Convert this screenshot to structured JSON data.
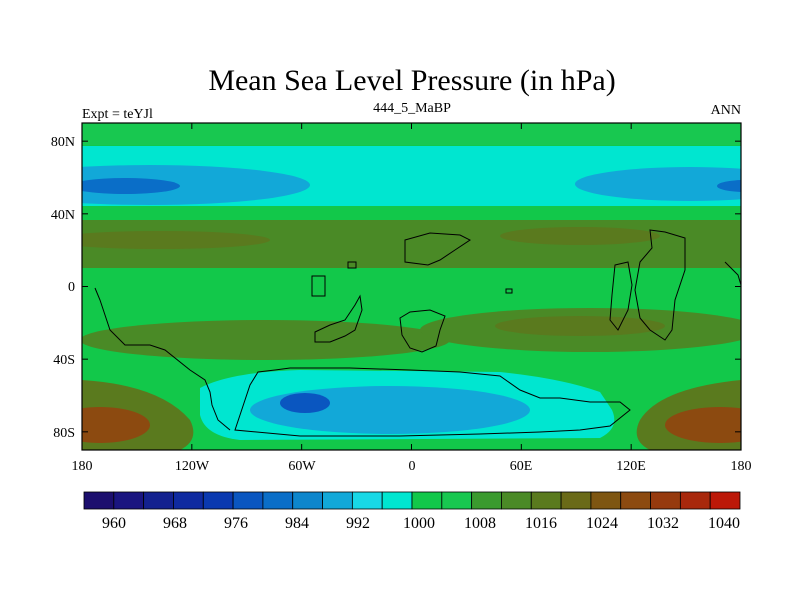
{
  "chart_data": {
    "type": "heatmap",
    "title": "Mean Sea Level Pressure (in hPa)",
    "left_string": "Expt = teYJl",
    "center_string": "444_5_MaBP",
    "right_string": "ANN",
    "x_ticks": [
      "180",
      "120W",
      "60W",
      "0",
      "60E",
      "120E",
      "180"
    ],
    "x_tick_values": [
      -180,
      -120,
      -60,
      0,
      60,
      120,
      180
    ],
    "y_ticks": [
      "80N",
      "40N",
      "0",
      "40S",
      "80S"
    ],
    "y_tick_values": [
      80,
      40,
      0,
      -40,
      -80
    ],
    "xlim": [
      -180,
      180
    ],
    "ylim": [
      -90,
      90
    ],
    "units": "hPa",
    "colorbar": {
      "labels": [
        "960",
        "968",
        "976",
        "984",
        "992",
        "1000",
        "1008",
        "1016",
        "1024",
        "1032",
        "1040"
      ],
      "levels": [
        956,
        960,
        964,
        968,
        972,
        976,
        980,
        984,
        988,
        992,
        996,
        1000,
        1004,
        1008,
        1012,
        1016,
        1020,
        1024,
        1028,
        1032,
        1036,
        1040,
        1044
      ],
      "colors": [
        "#1c0f6e",
        "#1a1580",
        "#13218f",
        "#0f2aa0",
        "#0a39b0",
        "#0a56c0",
        "#0a6ec8",
        "#0d86cc",
        "#12a8d8",
        "#18d8e6",
        "#00e6d0",
        "#12c84a",
        "#18c850",
        "#3a9a2e",
        "#4a8a26",
        "#5a7a1e",
        "#6a6a18",
        "#7e5612",
        "#8c4a10",
        "#963a0e",
        "#a8280c",
        "#bc1808"
      ]
    },
    "pressure_bands": [
      {
        "region": "north pole",
        "value_hpa": 1010
      },
      {
        "region": "northern subpolar low",
        "value_hpa": 998
      },
      {
        "region": "northern low core",
        "value_hpa": 986
      },
      {
        "region": "northern subtropical high",
        "value_hpa": 1016
      },
      {
        "region": "equatorial trough",
        "value_hpa": 1009
      },
      {
        "region": "southern subtropical high",
        "value_hpa": 1016
      },
      {
        "region": "southern subpolar low",
        "value_hpa": 1000
      },
      {
        "region": "antarctic low core",
        "value_hpa": 984
      },
      {
        "region": "south polar high",
        "value_hpa": 1028
      }
    ]
  }
}
